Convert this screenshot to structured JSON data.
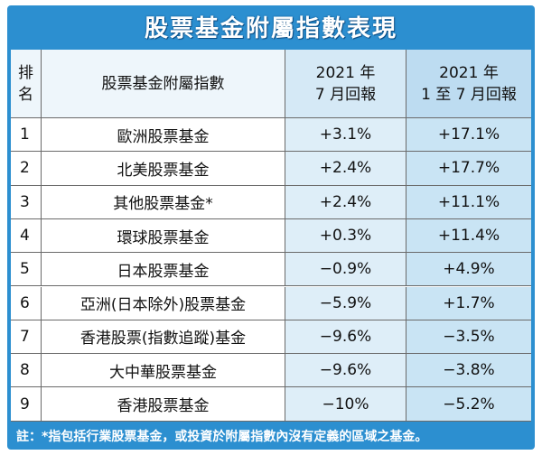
{
  "title": "股票基金附屬指數表現",
  "headers": {
    "rank": [
      "排",
      "名"
    ],
    "name": "股票基金附屬指數",
    "july": [
      "2021 年",
      "7 月回報"
    ],
    "ytd": [
      "2021 年",
      "1 至 7 月回報"
    ]
  },
  "rows": [
    {
      "rank": "1",
      "name": "歐洲股票基金",
      "july": "+3.1%",
      "ytd": "+17.1%"
    },
    {
      "rank": "2",
      "name": "北美股票基金",
      "july": "+2.4%",
      "ytd": "+17.7%"
    },
    {
      "rank": "3",
      "name": "其他股票基金*",
      "july": "+2.4%",
      "ytd": "+11.1%"
    },
    {
      "rank": "4",
      "name": "環球股票基金",
      "july": "+0.3%",
      "ytd": "+11.4%"
    },
    {
      "rank": "5",
      "name": "日本股票基金",
      "july": "−0.9%",
      "ytd": "+4.9%"
    },
    {
      "rank": "6",
      "name": "亞洲(日本除外)股票基金",
      "july": "−5.9%",
      "ytd": "+1.7%"
    },
    {
      "rank": "7",
      "name": "香港股票(指數追蹤)基金",
      "july": "−9.6%",
      "ytd": "−3.5%"
    },
    {
      "rank": "8",
      "name": "大中華股票基金",
      "july": "−9.6%",
      "ytd": "−3.8%"
    },
    {
      "rank": "9",
      "name": "香港股票基金",
      "july": "−10%",
      "ytd": "−5.2%"
    }
  ],
  "footnote": "註：*指包括行業股票基金，或投資於附屬指數內沒有定義的區域之基金。"
}
